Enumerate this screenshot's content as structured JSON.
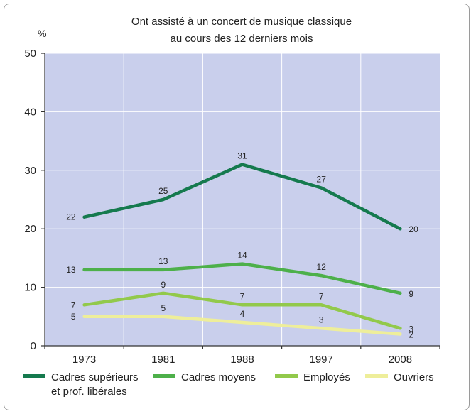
{
  "chart_data": {
    "type": "line",
    "title": "Ont assisté à un concert de musique classique",
    "subtitle": "au cours des 12 derniers mois",
    "ylabel": "%",
    "xlabel": "",
    "ylim": [
      0,
      50
    ],
    "yticks": [
      0,
      10,
      20,
      30,
      40,
      50
    ],
    "categories": [
      "1973",
      "1981",
      "1988",
      "1997",
      "2008"
    ],
    "grid": true,
    "legend_position": "bottom",
    "series": [
      {
        "name": "Cadres supérieurs",
        "name_line2": "et prof. libérales",
        "color": "#157a4e",
        "values": [
          22,
          25,
          31,
          27,
          20
        ]
      },
      {
        "name": "Cadres moyens",
        "name_line2": "",
        "color": "#4db04a",
        "values": [
          13,
          13,
          14,
          12,
          9
        ]
      },
      {
        "name": "Employés",
        "name_line2": "",
        "color": "#92c94b",
        "values": [
          7,
          9,
          7,
          7,
          3
        ]
      },
      {
        "name": "Ouvriers",
        "name_line2": "",
        "color": "#eeee9a",
        "values": [
          5,
          5,
          4,
          3,
          2
        ]
      }
    ]
  },
  "colors": {
    "plot_background": "#c9cfec",
    "gridline": "#ffffff",
    "axis": "#333333"
  }
}
